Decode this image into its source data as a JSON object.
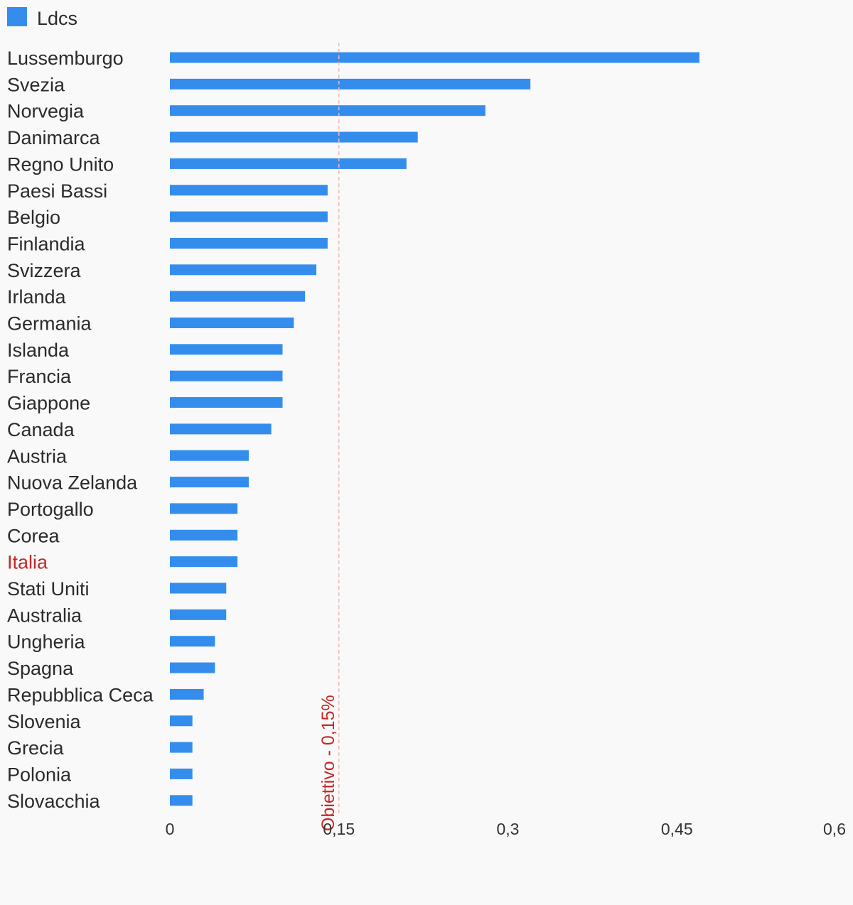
{
  "colors": {
    "bar": "#348ded",
    "highlight_label": "#c62828",
    "ref_line": "#f2b8b8",
    "background": "#f9f9f9"
  },
  "chart_data": {
    "type": "bar",
    "orientation": "horizontal",
    "legend": {
      "label": "Ldcs",
      "position": "top-left"
    },
    "series": [
      {
        "name": "Ldcs",
        "values": [
          0.47,
          0.32,
          0.28,
          0.22,
          0.21,
          0.14,
          0.14,
          0.14,
          0.13,
          0.12,
          0.11,
          0.1,
          0.1,
          0.1,
          0.09,
          0.07,
          0.07,
          0.06,
          0.06,
          0.06,
          0.05,
          0.05,
          0.04,
          0.04,
          0.03,
          0.02,
          0.02,
          0.02,
          0.02
        ]
      }
    ],
    "categories": [
      "Lussemburgo",
      "Svezia",
      "Norvegia",
      "Danimarca",
      "Regno Unito",
      "Paesi Bassi",
      "Belgio",
      "Finlandia",
      "Svizzera",
      "Irlanda",
      "Germania",
      "Islanda",
      "Francia",
      "Giappone",
      "Canada",
      "Austria",
      "Nuova Zelanda",
      "Portogallo",
      "Corea",
      "Italia",
      "Stati Uniti",
      "Australia",
      "Ungheria",
      "Spagna",
      "Repubblica Ceca",
      "Slovenia",
      "Grecia",
      "Polonia",
      "Slovacchia"
    ],
    "highlight_category": "Italia",
    "xlim": [
      0,
      0.6
    ],
    "xticks": [
      0,
      0.15,
      0.3,
      0.45,
      0.6
    ],
    "xtick_labels": [
      "0",
      "0,15",
      "0,3",
      "0,45",
      "0,6"
    ],
    "reference_line": {
      "value": 0.15,
      "label": "Obiettivo - 0,15%",
      "style": "dashed"
    },
    "grid": false
  }
}
